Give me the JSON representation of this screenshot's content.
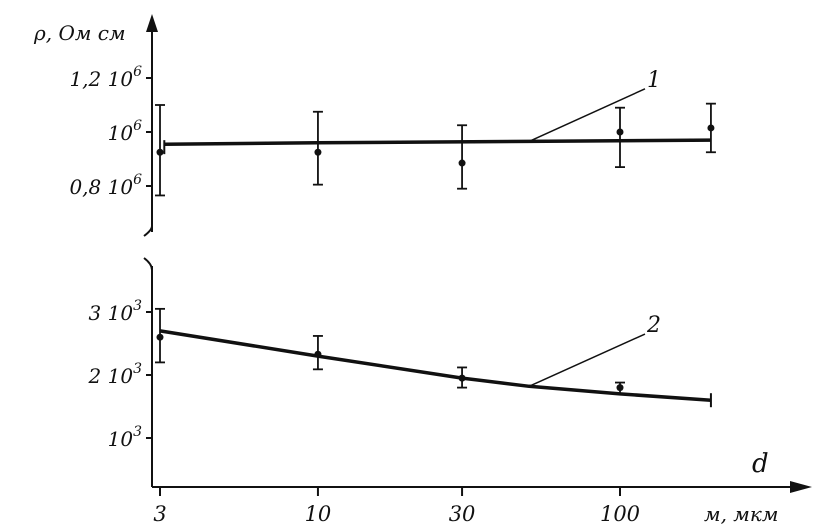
{
  "chart_data": {
    "type": "line",
    "x_axis": {
      "scale": "log",
      "range": [
        3,
        300
      ],
      "ticks": [
        {
          "value": 3,
          "label": "3"
        },
        {
          "value": 10,
          "label": "10"
        },
        {
          "value": 30,
          "label": "30"
        },
        {
          "value": 100,
          "label": "100"
        }
      ],
      "unit_label": "м, мкм",
      "symbol": "d"
    },
    "y_axis": {
      "label": "ρ, Ом см",
      "broken": true
    },
    "panels": [
      {
        "id": "upper",
        "curve_number": "1",
        "y_range": [
          700000,
          1300000
        ],
        "y_ticks": [
          {
            "value": 800000,
            "mantissa": "0,8",
            "base": "10",
            "exp": "6"
          },
          {
            "value": 1000000,
            "mantissa": "",
            "base": "10",
            "exp": "6"
          },
          {
            "value": 1200000,
            "mantissa": "1,2",
            "base": "10",
            "exp": "6"
          }
        ],
        "points": [
          {
            "x": 3,
            "y": 925000,
            "err_low": 765000,
            "err_high": 1100000
          },
          {
            "x": 10,
            "y": 925000,
            "err_low": 805000,
            "err_high": 1075000
          },
          {
            "x": 30,
            "y": 885000,
            "err_low": 790000,
            "err_high": 1025000
          },
          {
            "x": 100,
            "y": 1000000,
            "err_low": 870000,
            "err_high": 1090000
          },
          {
            "x": 200,
            "y": 1015000,
            "err_low": 925000,
            "err_high": 1105000
          }
        ],
        "fit_line": [
          {
            "x": 3.1,
            "y": 955000
          },
          {
            "x": 10,
            "y": 960000
          },
          {
            "x": 50,
            "y": 965000
          },
          {
            "x": 200,
            "y": 970000
          }
        ],
        "leader": {
          "from": {
            "x": 50,
            "y": 965000
          },
          "to": {
            "x": 100,
            "y": 1160000
          }
        }
      },
      {
        "id": "lower",
        "curve_number": "2",
        "y_range": [
          0,
          3700
        ],
        "y_ticks": [
          {
            "value": 1000,
            "mantissa": "",
            "base": "10",
            "exp": "3"
          },
          {
            "value": 2000,
            "mantissa": "2",
            "base": "10",
            "exp": "3"
          },
          {
            "value": 3000,
            "mantissa": "3",
            "base": "10",
            "exp": "3"
          }
        ],
        "points": [
          {
            "x": 3,
            "y": 2600,
            "err_low": 2200,
            "err_high": 3050
          },
          {
            "x": 10,
            "y": 2330,
            "err_low": 2090,
            "err_high": 2620
          },
          {
            "x": 30,
            "y": 1950,
            "err_low": 1800,
            "err_high": 2120
          },
          {
            "x": 100,
            "y": 1800,
            "err_low": 1700,
            "err_high": 1880
          }
        ],
        "fit_line": [
          {
            "x": 3,
            "y": 2700
          },
          {
            "x": 10,
            "y": 2300
          },
          {
            "x": 30,
            "y": 1950
          },
          {
            "x": 50,
            "y": 1820
          },
          {
            "x": 100,
            "y": 1700
          },
          {
            "x": 200,
            "y": 1600
          }
        ],
        "fit_end_cap": true,
        "leader": {
          "from": {
            "x": 50,
            "y": 1820
          },
          "to": {
            "x": 100,
            "y": 2650
          }
        }
      }
    ]
  }
}
